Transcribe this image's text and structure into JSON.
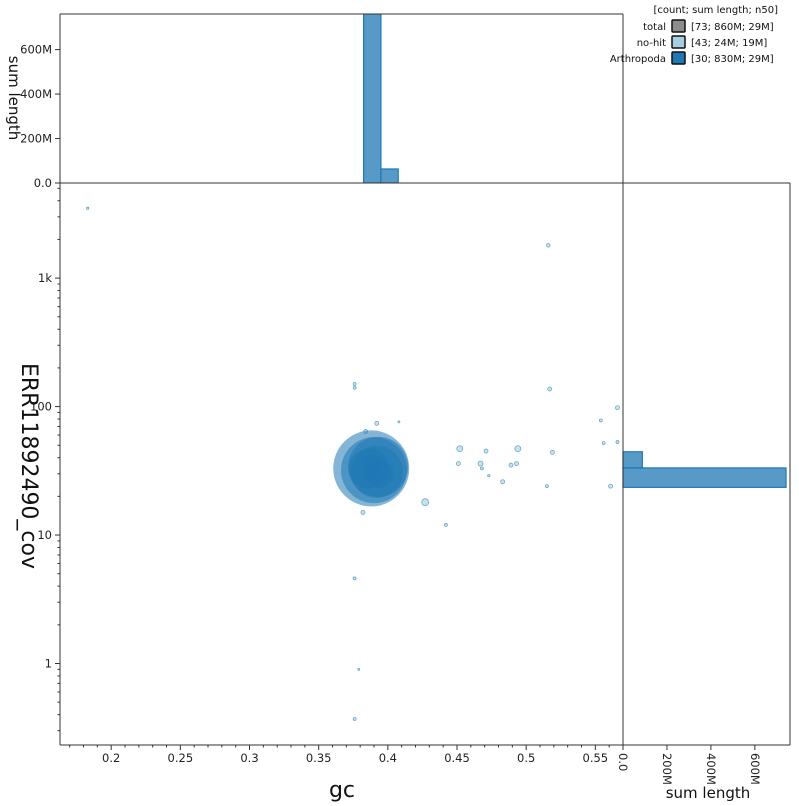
{
  "chart_data": {
    "type": "scatter",
    "title": "",
    "xlabel": "gc",
    "ylabel": "ERR11892490_cov",
    "x_scale": "linear",
    "y_scale": "log",
    "xlim": [
      0.163,
      0.57
    ],
    "ylim": [
      0.232,
      5500
    ],
    "x_ticks": [
      0.2,
      0.25,
      0.3,
      0.35,
      0.4,
      0.45,
      0.5,
      0.55
    ],
    "x_tick_labels": [
      "0.2",
      "0.25",
      "0.3",
      "0.35",
      "0.4",
      "0.45",
      "0.5",
      "0.55"
    ],
    "y_ticks": [
      1,
      10,
      100,
      1000
    ],
    "y_tick_labels": [
      "1",
      "10",
      "100",
      "1k"
    ],
    "legend": {
      "header": "[count; sum length; n50]",
      "placement": "top-right",
      "entries": [
        {
          "name": "total",
          "stats": "[73; 860M; 29M]",
          "color": "#8c8c8c"
        },
        {
          "name": "no-hit",
          "stats": "[43; 24M; 19M]",
          "color": "#a6cee3"
        },
        {
          "name": "Arthropoda",
          "stats": "[30; 830M; 29M]",
          "color": "#1f78b4"
        }
      ]
    },
    "series": [
      {
        "name": "no-hit",
        "color": "#a6cee3",
        "points": [
          {
            "x": 0.183,
            "y": 3500,
            "r": 1.2
          },
          {
            "x": 0.516,
            "y": 1800,
            "r": 1.8
          },
          {
            "x": 0.376,
            "y": 150,
            "r": 1.5
          },
          {
            "x": 0.376,
            "y": 140,
            "r": 1.5
          },
          {
            "x": 0.517,
            "y": 137,
            "r": 2.0
          },
          {
            "x": 0.566,
            "y": 98,
            "r": 2.0
          },
          {
            "x": 0.554,
            "y": 78,
            "r": 1.5
          },
          {
            "x": 0.392,
            "y": 74,
            "r": 2.0
          },
          {
            "x": 0.408,
            "y": 76,
            "r": 1.0
          },
          {
            "x": 0.384,
            "y": 64,
            "r": 2.0
          },
          {
            "x": 0.556,
            "y": 52,
            "r": 1.5
          },
          {
            "x": 0.566,
            "y": 53,
            "r": 1.5
          },
          {
            "x": 0.452,
            "y": 47,
            "r": 3.0
          },
          {
            "x": 0.471,
            "y": 45,
            "r": 2.0
          },
          {
            "x": 0.519,
            "y": 44,
            "r": 2.0
          },
          {
            "x": 0.494,
            "y": 47,
            "r": 3.0
          },
          {
            "x": 0.451,
            "y": 36,
            "r": 2.0
          },
          {
            "x": 0.467,
            "y": 36,
            "r": 2.5
          },
          {
            "x": 0.468,
            "y": 33,
            "r": 1.5
          },
          {
            "x": 0.489,
            "y": 35,
            "r": 2.0
          },
          {
            "x": 0.493,
            "y": 36,
            "r": 2.0
          },
          {
            "x": 0.473,
            "y": 29,
            "r": 1.2
          },
          {
            "x": 0.483,
            "y": 26,
            "r": 2.0
          },
          {
            "x": 0.515,
            "y": 24,
            "r": 1.5
          },
          {
            "x": 0.561,
            "y": 24,
            "r": 2.0
          },
          {
            "x": 0.427,
            "y": 18,
            "r": 3.5
          },
          {
            "x": 0.382,
            "y": 15,
            "r": 2.0
          },
          {
            "x": 0.442,
            "y": 12,
            "r": 1.5
          },
          {
            "x": 0.376,
            "y": 4.6,
            "r": 1.5
          },
          {
            "x": 0.379,
            "y": 0.9,
            "r": 1.0
          },
          {
            "x": 0.376,
            "y": 0.37,
            "r": 1.5
          }
        ]
      },
      {
        "name": "Arthropoda",
        "color": "#1f78b4",
        "points": [
          {
            "x": 0.388,
            "y": 33,
            "r": 38
          },
          {
            "x": 0.39,
            "y": 32,
            "r": 33
          },
          {
            "x": 0.393,
            "y": 34,
            "r": 30
          },
          {
            "x": 0.392,
            "y": 31,
            "r": 26
          },
          {
            "x": 0.386,
            "y": 33,
            "r": 20
          },
          {
            "x": 0.394,
            "y": 30,
            "r": 14
          },
          {
            "x": 0.389,
            "y": 36,
            "r": 9
          },
          {
            "x": 0.387,
            "y": 29,
            "r": 6
          }
        ]
      }
    ],
    "top_histogram": {
      "ylabel": "sum length",
      "ylim": [
        0,
        760
      ],
      "y_ticks": [
        0,
        200,
        400,
        600
      ],
      "y_tick_labels": [
        "0.0",
        "200M",
        "400M",
        "600M"
      ],
      "bins": [
        {
          "x0": 0.3825,
          "x1": 0.395,
          "total": 800,
          "nohit": 5,
          "arthropoda": 795
        },
        {
          "x0": 0.395,
          "x1": 0.4075,
          "total": 65,
          "nohit": 2,
          "arthropoda": 63
        }
      ]
    },
    "right_histogram": {
      "xlabel": "sum length",
      "xlim": [
        0,
        760
      ],
      "x_ticks": [
        0,
        200,
        400,
        600
      ],
      "x_tick_labels": [
        "0.0",
        "200M",
        "400M",
        "600M"
      ],
      "bins": [
        {
          "y0": 23.5,
          "y1": 33.3,
          "total": 748,
          "nohit": 6,
          "arthropoda": 742
        },
        {
          "y0": 33.3,
          "y1": 44.5,
          "total": 92,
          "nohit": 4,
          "arthropoda": 88
        }
      ]
    }
  }
}
